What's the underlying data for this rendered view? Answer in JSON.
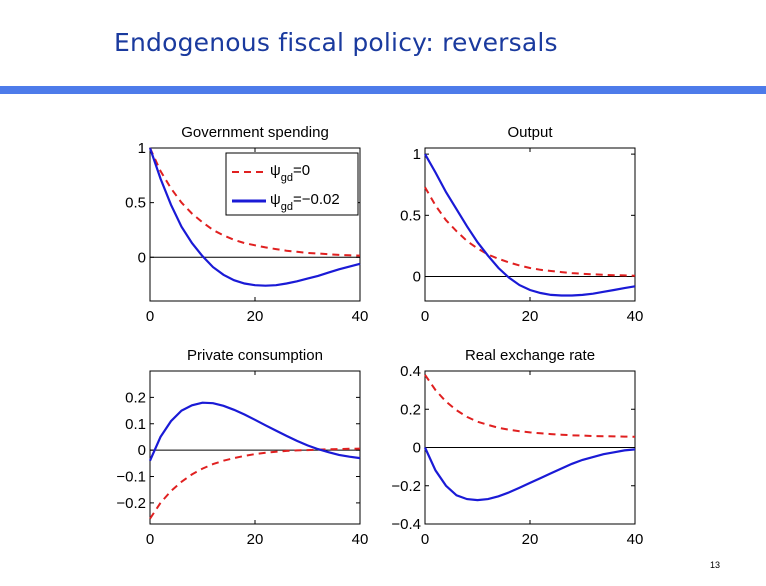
{
  "slide": {
    "title": "Endogenous fiscal policy: reversals",
    "page_number": "13"
  },
  "colors": {
    "title_text": "#1a3a9e",
    "accent_rule": "#4d7bea",
    "series_psi0": "#e02020",
    "series_psi_neg": "#1a1ad6"
  },
  "chart_data": [
    {
      "type": "line",
      "title": "Government spending",
      "x": [
        0,
        2,
        4,
        6,
        8,
        10,
        12,
        14,
        16,
        18,
        20,
        22,
        24,
        26,
        28,
        30,
        32,
        34,
        36,
        38,
        40
      ],
      "xlim": [
        0,
        40
      ],
      "ylim": [
        -0.4,
        1
      ],
      "xticks": [
        0,
        20,
        40
      ],
      "yticks": [
        0,
        0.5,
        1
      ],
      "ytick_labels": [
        "0",
        "0.5",
        "1"
      ],
      "zero_line": true,
      "legend": {
        "psi0_symbol": "ψ",
        "psi0_sub": "gd",
        "psi0_rest": "=0",
        "psineg_symbol": "ψ",
        "psineg_sub": "gd",
        "psineg_rest": "=−0.02"
      },
      "series": [
        {
          "name": "ψgd=0",
          "style": "dashed",
          "values": [
            1.0,
            0.79,
            0.63,
            0.5,
            0.4,
            0.32,
            0.25,
            0.2,
            0.16,
            0.13,
            0.11,
            0.09,
            0.075,
            0.06,
            0.05,
            0.04,
            0.035,
            0.028,
            0.022,
            0.018,
            0.015
          ]
        },
        {
          "name": "ψgd=−0.02",
          "style": "solid",
          "values": [
            1.0,
            0.72,
            0.48,
            0.28,
            0.13,
            0.01,
            -0.09,
            -0.16,
            -0.21,
            -0.24,
            -0.255,
            -0.26,
            -0.255,
            -0.24,
            -0.22,
            -0.195,
            -0.17,
            -0.14,
            -0.11,
            -0.085,
            -0.06
          ]
        }
      ]
    },
    {
      "type": "line",
      "title": "Output",
      "x": [
        0,
        2,
        4,
        6,
        8,
        10,
        12,
        14,
        16,
        18,
        20,
        22,
        24,
        26,
        28,
        30,
        32,
        34,
        36,
        38,
        40
      ],
      "xlim": [
        0,
        40
      ],
      "ylim": [
        -0.2,
        1.05
      ],
      "xticks": [
        0,
        20,
        40
      ],
      "yticks": [
        0,
        0.5,
        1
      ],
      "ytick_labels": [
        "0",
        "0.5",
        "1"
      ],
      "zero_line": true,
      "series": [
        {
          "name": "ψgd=0",
          "style": "dashed",
          "values": [
            0.73,
            0.58,
            0.46,
            0.37,
            0.29,
            0.23,
            0.18,
            0.145,
            0.115,
            0.09,
            0.07,
            0.055,
            0.045,
            0.036,
            0.028,
            0.022,
            0.018,
            0.014,
            0.011,
            0.009,
            0.007
          ]
        },
        {
          "name": "ψgd=−0.02",
          "style": "solid",
          "values": [
            1.0,
            0.85,
            0.69,
            0.55,
            0.41,
            0.28,
            0.17,
            0.07,
            -0.01,
            -0.07,
            -0.11,
            -0.135,
            -0.15,
            -0.155,
            -0.155,
            -0.15,
            -0.14,
            -0.125,
            -0.11,
            -0.095,
            -0.08
          ]
        }
      ]
    },
    {
      "type": "line",
      "title": "Private consumption",
      "x": [
        0,
        2,
        4,
        6,
        8,
        10,
        12,
        14,
        16,
        18,
        20,
        22,
        24,
        26,
        28,
        30,
        32,
        34,
        36,
        38,
        40
      ],
      "xlim": [
        0,
        40
      ],
      "ylim": [
        -0.28,
        0.3
      ],
      "xticks": [
        0,
        20,
        40
      ],
      "yticks": [
        -0.2,
        -0.1,
        0,
        0.1,
        0.2
      ],
      "ytick_labels": [
        "−0.2",
        "−0.1",
        "0",
        "0.1",
        "0.2"
      ],
      "zero_line": true,
      "series": [
        {
          "name": "ψgd=0",
          "style": "dashed",
          "values": [
            -0.26,
            -0.2,
            -0.155,
            -0.12,
            -0.092,
            -0.07,
            -0.053,
            -0.04,
            -0.03,
            -0.022,
            -0.015,
            -0.01,
            -0.006,
            -0.003,
            -0.001,
            0.0,
            0.002,
            0.003,
            0.004,
            0.005,
            0.006
          ]
        },
        {
          "name": "ψgd=−0.02",
          "style": "solid",
          "values": [
            -0.04,
            0.05,
            0.11,
            0.15,
            0.17,
            0.18,
            0.178,
            0.168,
            0.153,
            0.135,
            0.115,
            0.094,
            0.074,
            0.054,
            0.035,
            0.018,
            0.004,
            -0.008,
            -0.018,
            -0.025,
            -0.03
          ]
        }
      ]
    },
    {
      "type": "line",
      "title": "Real exchange rate",
      "x": [
        0,
        2,
        4,
        6,
        8,
        10,
        12,
        14,
        16,
        18,
        20,
        22,
        24,
        26,
        28,
        30,
        32,
        34,
        36,
        38,
        40
      ],
      "xlim": [
        0,
        40
      ],
      "ylim": [
        -0.4,
        0.4
      ],
      "xticks": [
        0,
        20,
        40
      ],
      "yticks": [
        -0.4,
        -0.2,
        0,
        0.2,
        0.4
      ],
      "ytick_labels": [
        "−0.4",
        "−0.2",
        "0",
        "0.2",
        "0.4"
      ],
      "zero_line": true,
      "series": [
        {
          "name": "ψgd=0",
          "style": "dashed",
          "values": [
            0.38,
            0.3,
            0.24,
            0.195,
            0.16,
            0.135,
            0.118,
            0.103,
            0.093,
            0.085,
            0.079,
            0.074,
            0.07,
            0.067,
            0.064,
            0.062,
            0.06,
            0.059,
            0.058,
            0.057,
            0.056
          ]
        },
        {
          "name": "ψgd=−0.02",
          "style": "solid",
          "values": [
            0.0,
            -0.12,
            -0.2,
            -0.25,
            -0.27,
            -0.275,
            -0.27,
            -0.255,
            -0.235,
            -0.21,
            -0.185,
            -0.16,
            -0.135,
            -0.11,
            -0.085,
            -0.065,
            -0.05,
            -0.035,
            -0.025,
            -0.015,
            -0.01
          ]
        }
      ]
    }
  ]
}
